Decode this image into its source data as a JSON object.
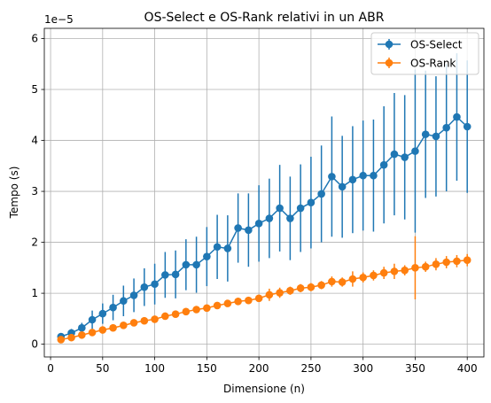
{
  "chart_data": {
    "type": "line",
    "title": "OS-Select e OS-Rank relativi in un ABR",
    "xlabel": "Dimensione (n)",
    "ylabel": "Tempo (s)",
    "y_offset_label": "1e−5",
    "y_scale_factor": 1e-05,
    "xlim": [
      -6,
      416
    ],
    "ylim": [
      -0.25,
      6.2
    ],
    "x_ticks": [
      0,
      50,
      100,
      150,
      200,
      250,
      300,
      350,
      400
    ],
    "x_tick_labels": [
      "0",
      "50",
      "100",
      "150",
      "200",
      "250",
      "300",
      "350",
      "400"
    ],
    "y_ticks": [
      0,
      1,
      2,
      3,
      4,
      5,
      6
    ],
    "y_tick_labels": [
      "0",
      "1",
      "2",
      "3",
      "4",
      "5",
      "6"
    ],
    "grid": true,
    "legend_position": "top-right",
    "x": [
      10,
      20,
      30,
      40,
      50,
      60,
      70,
      80,
      90,
      100,
      110,
      120,
      130,
      140,
      150,
      160,
      170,
      180,
      190,
      200,
      210,
      220,
      230,
      240,
      250,
      260,
      270,
      280,
      290,
      300,
      310,
      320,
      330,
      340,
      350,
      360,
      370,
      380,
      390,
      400
    ],
    "series": [
      {
        "name": "OS-Select",
        "color": "#1f77b4",
        "values": [
          0.15,
          0.22,
          0.32,
          0.48,
          0.6,
          0.72,
          0.85,
          0.96,
          1.12,
          1.18,
          1.36,
          1.37,
          1.56,
          1.56,
          1.72,
          1.91,
          1.88,
          2.28,
          2.24,
          2.37,
          2.47,
          2.67,
          2.47,
          2.67,
          2.78,
          2.95,
          3.29,
          3.09,
          3.23,
          3.31,
          3.31,
          3.52,
          3.73,
          3.67,
          3.79,
          4.12,
          4.08,
          4.25,
          4.46,
          4.27
        ],
        "errors": [
          0.05,
          0.08,
          0.1,
          0.18,
          0.2,
          0.25,
          0.3,
          0.33,
          0.37,
          0.4,
          0.45,
          0.47,
          0.5,
          0.55,
          0.58,
          0.63,
          0.65,
          0.68,
          0.72,
          0.75,
          0.78,
          0.85,
          0.82,
          0.86,
          0.9,
          0.95,
          1.18,
          1.0,
          1.05,
          1.08,
          1.1,
          1.15,
          1.2,
          1.22,
          1.6,
          1.25,
          1.18,
          1.25,
          1.25,
          1.3
        ]
      },
      {
        "name": "OS-Rank",
        "color": "#ff7f0e",
        "values": [
          0.09,
          0.13,
          0.18,
          0.23,
          0.28,
          0.32,
          0.37,
          0.42,
          0.46,
          0.49,
          0.55,
          0.59,
          0.64,
          0.68,
          0.71,
          0.76,
          0.8,
          0.84,
          0.86,
          0.9,
          0.97,
          1.01,
          1.05,
          1.1,
          1.12,
          1.16,
          1.23,
          1.22,
          1.28,
          1.31,
          1.35,
          1.4,
          1.43,
          1.45,
          1.5,
          1.52,
          1.57,
          1.61,
          1.63,
          1.65
        ],
        "errors": [
          0.02,
          0.02,
          0.03,
          0.03,
          0.03,
          0.04,
          0.04,
          0.04,
          0.05,
          0.05,
          0.05,
          0.05,
          0.06,
          0.06,
          0.06,
          0.06,
          0.06,
          0.07,
          0.07,
          0.07,
          0.12,
          0.1,
          0.08,
          0.08,
          0.08,
          0.08,
          0.1,
          0.09,
          0.15,
          0.1,
          0.1,
          0.12,
          0.15,
          0.1,
          0.62,
          0.1,
          0.12,
          0.12,
          0.12,
          0.12
        ]
      }
    ]
  }
}
